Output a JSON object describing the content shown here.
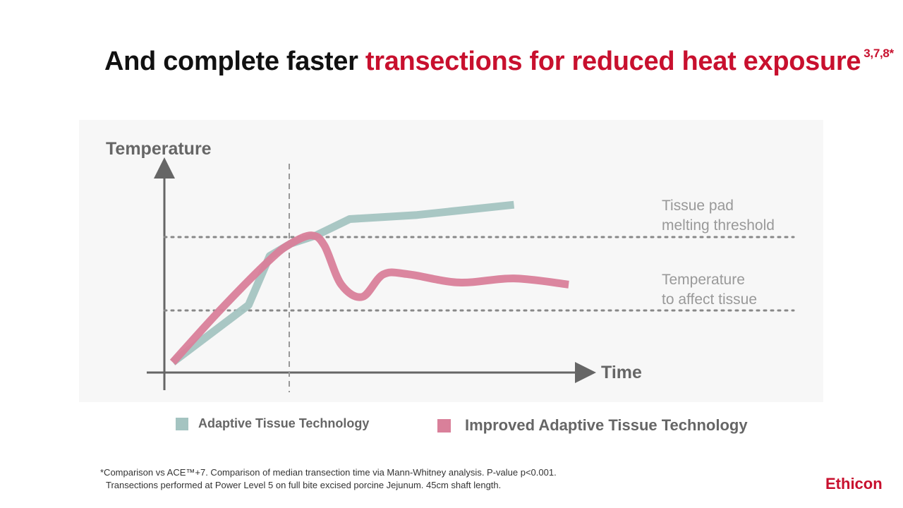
{
  "title": {
    "text_plain": "And complete faster ",
    "text_highlight": "transections for reduced heat exposure",
    "superscript": "3,7,8*"
  },
  "chart_data": {
    "type": "line",
    "ylabel": "Temperature",
    "xlabel": "Time",
    "xlim": [
      0,
      100
    ],
    "ylim": [
      0,
      100
    ],
    "reference_lines": [
      {
        "label_line1": "Tissue pad",
        "label_line2": "melting threshold",
        "y": 68
      },
      {
        "label_line1": "Temperature",
        "label_line2": "to affect tissue",
        "y": 30
      },
      {
        "type": "vertical",
        "x": 25
      }
    ],
    "series": [
      {
        "name": "Adaptive Tissue Technology",
        "color": "#a4c4c1",
        "x": [
          2,
          20,
          25,
          30,
          36,
          44,
          60,
          83
        ],
        "y": [
          5,
          33,
          57,
          63,
          67,
          75,
          77,
          82
        ]
      },
      {
        "name": "Improved Adaptive Tissue Technology",
        "color": "#d9809a",
        "x": [
          2,
          13,
          25,
          30,
          35,
          38,
          42,
          47,
          52,
          58,
          70,
          83,
          96
        ],
        "y": [
          5,
          30,
          55,
          63,
          67,
          62,
          43,
          37,
          48,
          48,
          44,
          46,
          43
        ]
      }
    ]
  },
  "legend": {
    "items": [
      {
        "label": "Adaptive Tissue Technology",
        "color": "#a4c4c1"
      },
      {
        "label": "Improved Adaptive Tissue Technology",
        "color": "#d9809a"
      }
    ]
  },
  "footnote": {
    "line1": "*Comparison vs ACE™+7. Comparison of median transection time via Mann-Whitney analysis. P-value p<0.001.",
    "line2": "Transections performed at Power Level 5 on full bite excised porcine Jejunum. 45cm shaft length."
  },
  "brand": "Ethicon"
}
